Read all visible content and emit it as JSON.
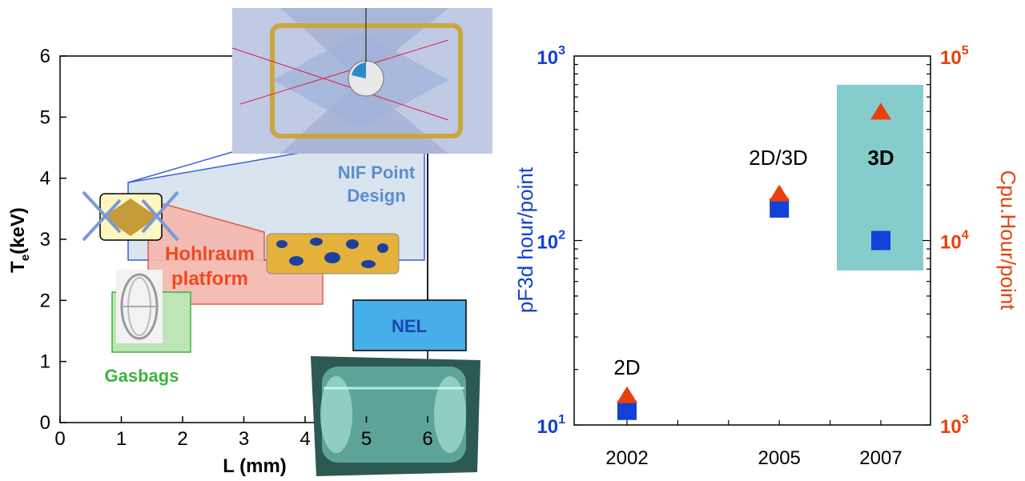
{
  "colors": {
    "blue": "#1240d8",
    "orange": "#e8400c",
    "nif_text": "#5a8ecc",
    "hohlraum_text": "#f04a1e",
    "gasbag_text": "#3cb43c",
    "nel_fill": "#46aee8",
    "nel_text": "#1a44b8",
    "teal_box": "#86cccc"
  },
  "chart_data": [
    {
      "type": "scatter",
      "xlabel": "L (mm)",
      "ylabel": "T",
      "ylabel_sub": "e",
      "ylabel_unit": "(keV)",
      "xlim": [
        0,
        6
      ],
      "ylim": [
        0,
        6
      ],
      "x_ticks": [
        "0",
        "1",
        "2",
        "3",
        "4",
        "5",
        "6"
      ],
      "y_ticks": [
        "0",
        "1",
        "2",
        "3",
        "4",
        "5",
        "6"
      ],
      "regions": [
        {
          "label": "NIF Point Design",
          "line1": "NIF Point",
          "line2": "Design",
          "x": [
            1.1,
            5.9
          ],
          "y": [
            2.65,
            4.0
          ]
        },
        {
          "label": "Hohlraum platform",
          "line1": "Hohlraum",
          "line2": "platform",
          "x": [
            1.4,
            4.3
          ],
          "y": [
            1.95,
            3.35
          ]
        },
        {
          "label": "Gasbags",
          "x": [
            0.85,
            2.1
          ],
          "y": [
            1.15,
            2.1
          ]
        },
        {
          "label": "NEL",
          "x": [
            4.85,
            6.6
          ],
          "y": [
            1.2,
            2.0
          ]
        }
      ],
      "icons": [
        "nif-hohlraum-image",
        "small-hohlraum-icon",
        "hohlraum-cylinder-image",
        "gasbag-image",
        "nel-target-image"
      ]
    },
    {
      "type": "scatter",
      "categories": [
        "2002",
        "2005",
        "2007"
      ],
      "x_ticks": [
        "2002",
        "2005",
        "2007"
      ],
      "ylabel_left": "pF3d hour/point",
      "ylabel_right": "Cpu.Hour/point",
      "yscale": "log",
      "ylim_left": [
        10,
        1000
      ],
      "ylim_right": [
        1000,
        100000
      ],
      "left_ticks": [
        {
          "base": "10",
          "exp": "3"
        },
        {
          "base": "10",
          "exp": "2"
        },
        {
          "base": "10",
          "exp": "1"
        }
      ],
      "right_ticks": [
        {
          "base": "10",
          "exp": "5"
        },
        {
          "base": "10",
          "exp": "4"
        },
        {
          "base": "10",
          "exp": "3"
        }
      ],
      "series": [
        {
          "axis": "left",
          "marker": "square",
          "values": [
            12,
            150,
            100
          ]
        },
        {
          "axis": "right",
          "marker": "triangle",
          "values": [
            1450,
            18000,
            50000
          ]
        }
      ],
      "annotations": [
        "2D",
        "2D/3D",
        "3D"
      ]
    }
  ]
}
